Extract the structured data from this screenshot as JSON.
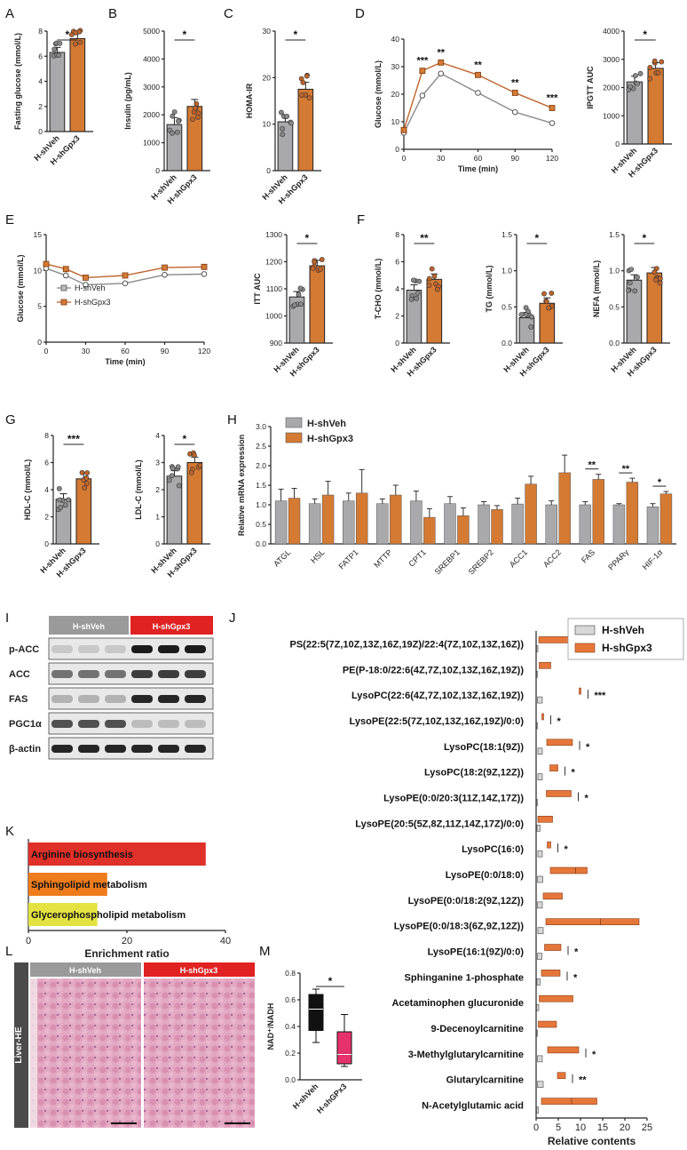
{
  "colors": {
    "veh": "#a9a9ab",
    "gpx": "#c0642a",
    "gpx_fill": "#d47a33",
    "kegg_red": "#e0302a",
    "kegg_orange": "#ef7c1c",
    "kegg_yellow": "#e3e242",
    "pink": "#e6326c",
    "blot_red": "#e02222",
    "blot_gray": "#9a9a9a"
  },
  "groups": {
    "veh": "H-shVeh",
    "gpx": "H-shGpx3",
    "gpx_lower": "H-shGPx3"
  },
  "panel_labels": [
    "A",
    "B",
    "C",
    "D",
    "E",
    "F",
    "G",
    "H",
    "I",
    "J",
    "K",
    "L",
    "M"
  ],
  "panelA": {
    "ylabel": "Fasting glucose (mmol/L)",
    "ylim": [
      0,
      8
    ],
    "ticks": [
      "0",
      "2",
      "4",
      "6",
      "8"
    ],
    "values": [
      6.3,
      7.4
    ],
    "sig": "*"
  },
  "panelB": {
    "ylabel": "Insulin (pg/mL)",
    "ylim": [
      0,
      5000
    ],
    "ticks": [
      "0",
      "1000",
      "2000",
      "3000",
      "4000",
      "5000"
    ],
    "values": [
      1650,
      2300
    ],
    "sig": "*"
  },
  "panelC": {
    "ylabel": "HOMA-IR",
    "ylim": [
      0,
      30
    ],
    "ticks": [
      "0",
      "10",
      "20",
      "30"
    ],
    "values": [
      10.5,
      17.5
    ],
    "sig": "*"
  },
  "panelD": {
    "ylabel": "Glucose (mmol/L)",
    "xlabel": "Time (min)",
    "ylim": [
      0,
      40
    ],
    "yticks": [
      "0",
      "10",
      "20",
      "30",
      "40"
    ],
    "xticks": [
      "0",
      "30",
      "60",
      "90",
      "120"
    ],
    "x": [
      0,
      15,
      30,
      60,
      90,
      120
    ],
    "veh": [
      6.0,
      19.5,
      27.5,
      20.5,
      13.5,
      9.5
    ],
    "gpx": [
      7.0,
      28.5,
      31.5,
      27.0,
      20.5,
      15.0
    ],
    "sig": [
      "***",
      "**",
      "**",
      "**",
      "***"
    ],
    "auc_ylabel": "IPGTT AUC",
    "auc_ylim": [
      0,
      4000
    ],
    "auc_ticks": [
      "0",
      "1000",
      "2000",
      "3000",
      "4000"
    ],
    "auc_values": [
      2200,
      2680
    ],
    "auc_sig": "*"
  },
  "panelE": {
    "ylabel": "Glucose (mmol/L)",
    "xlabel": "Time (min)",
    "ylim": [
      0,
      15
    ],
    "yticks": [
      "0",
      "5",
      "10",
      "15"
    ],
    "xticks": [
      "0",
      "30",
      "60",
      "90",
      "120"
    ],
    "x": [
      0,
      15,
      30,
      60,
      90,
      120
    ],
    "veh": [
      10.3,
      9.3,
      8.0,
      8.2,
      9.4,
      9.5
    ],
    "gpx": [
      10.9,
      10.2,
      9.0,
      9.3,
      10.4,
      10.5
    ],
    "auc_ylabel": "ITT AUC",
    "auc_ylim": [
      900,
      1300
    ],
    "auc_ticks": [
      "900",
      "1000",
      "1100",
      "1200",
      "1300"
    ],
    "auc_values": [
      1070,
      1185
    ],
    "auc_sig": "*"
  },
  "panelF": {
    "tcho": {
      "ylabel": "T-CHO (mmol/L)",
      "ylim": [
        0,
        8
      ],
      "ticks": [
        "0",
        "2",
        "4",
        "6",
        "8"
      ],
      "values": [
        3.9,
        4.7
      ],
      "sig": "**"
    },
    "tg": {
      "ylabel": "TG (mmol/L)",
      "ylim": [
        0,
        1.5
      ],
      "ticks": [
        "0.0",
        "0.5",
        "1.0",
        "1.5"
      ],
      "values": [
        0.35,
        0.55
      ],
      "sig": "*"
    },
    "nefa": {
      "ylabel": "NEFA (mmol/L)",
      "ylim": [
        0,
        1.5
      ],
      "ticks": [
        "0.0",
        "0.5",
        "1.0",
        "1.5"
      ],
      "values": [
        0.87,
        0.97
      ],
      "sig": "*"
    }
  },
  "panelG": {
    "hdl": {
      "ylabel": "HDL-C (mmol/L)",
      "ylim": [
        0,
        8
      ],
      "ticks": [
        "0",
        "2",
        "4",
        "6",
        "8"
      ],
      "values": [
        3.3,
        4.8
      ],
      "sig": "***"
    },
    "ldl": {
      "ylabel": "LDL-C (mmol/L)",
      "ylim": [
        0,
        4
      ],
      "ticks": [
        "0",
        "1",
        "2",
        "3",
        "4"
      ],
      "values": [
        2.5,
        3.0
      ],
      "sig": "*"
    }
  },
  "panelH": {
    "ylabel": "Relative mRNA expression",
    "ylim": [
      0,
      3
    ],
    "ticks": [
      "0.0",
      "0.5",
      "1.0",
      "1.5",
      "2.0",
      "2.5",
      "3.0"
    ],
    "categories": [
      "ATGL",
      "HSL",
      "FATP1",
      "MTTP",
      "CPT1",
      "SREBP1",
      "SREBP2",
      "ACC1",
      "ACC2",
      "FAS",
      "PPARγ",
      "HIF-1α"
    ],
    "veh": [
      1.1,
      1.03,
      1.1,
      1.03,
      1.1,
      1.03,
      1.0,
      1.02,
      1.0,
      1.0,
      1.0,
      0.95
    ],
    "gpx": [
      1.17,
      1.25,
      1.3,
      1.25,
      0.68,
      0.72,
      0.88,
      1.53,
      1.82,
      1.65,
      1.58,
      1.28
    ],
    "veh_err": [
      0.3,
      0.12,
      0.2,
      0.12,
      0.25,
      0.18,
      0.08,
      0.15,
      0.1,
      0.08,
      0.03,
      0.08
    ],
    "gpx_err": [
      0.25,
      0.35,
      0.6,
      0.25,
      0.22,
      0.2,
      0.1,
      0.2,
      0.45,
      0.13,
      0.1,
      0.06
    ],
    "sig": [
      "",
      "",
      "",
      "",
      "",
      "",
      "",
      "",
      "",
      "**",
      "**",
      "*"
    ]
  },
  "panelI": {
    "labels": [
      "p-ACC",
      "ACC",
      "FAS",
      "PGC1α",
      "β-actin"
    ]
  },
  "panelJ": {
    "xlabel": "Relative contents",
    "xlim": [
      0,
      25
    ],
    "ticks": [
      "0",
      "5",
      "10",
      "15",
      "20",
      "25"
    ],
    "metabolites": [
      "PS(22:5(7Z,10Z,13Z,16Z,19Z)/22:4(7Z,10Z,13Z,16Z))",
      "PE(P-18:0/22:6(4Z,7Z,10Z,13Z,16Z,19Z))",
      "LysoPC(22:6(4Z,7Z,10Z,13Z,16Z,19Z))",
      "LysoPE(22:5(7Z,10Z,13Z,16Z,19Z)/0:0)",
      "LysoPC(18:1(9Z))",
      "LysoPC(18:2(9Z,12Z))",
      "LysoPE(0:0/20:3(11Z,14Z,17Z))",
      "LysoPE(20:5(5Z,8Z,11Z,14Z,17Z)/0:0)",
      "LysoPC(16:0)",
      "LysoPE(0:0/18:0)",
      "LysoPE(0:0/18:2(9Z,12Z))",
      "LysoPE(0:0/18:3(6Z,9Z,12Z))",
      "LysoPE(16:1(9Z)/0:0)",
      "Sphinganine 1-phosphate",
      "Acetaminophen glucuronide",
      "9-Decenoylcarnitine",
      "3-Methylglutarylcarnitine",
      "Glutarylcarnitine",
      "N-Acetylglutamic acid"
    ],
    "veh_min": [
      0.1,
      0.1,
      0.3,
      0.1,
      0.4,
      0.4,
      0.1,
      0.2,
      0.4,
      0.3,
      0.3,
      0.4,
      0.3,
      0.2,
      0.1,
      0.1,
      0.3,
      0.3,
      0.1
    ],
    "veh_max": [
      0.4,
      0.3,
      1.4,
      0.3,
      1.4,
      1.4,
      0.3,
      0.9,
      1.4,
      1.5,
      1.4,
      1.6,
      1.3,
      0.9,
      0.6,
      0.3,
      1.4,
      1.6,
      0.5
    ],
    "gpx_min": [
      0.6,
      0.7,
      9.7,
      1.3,
      2.4,
      3.1,
      2.3,
      0.4,
      2.5,
      3.2,
      1.6,
      2.2,
      1.9,
      1.2,
      0.7,
      0.5,
      2.6,
      4.8,
      1.2
    ],
    "gpx_max": [
      7.7,
      3.3,
      10.1,
      1.7,
      8.2,
      4.9,
      7.9,
      3.7,
      3.3,
      11.5,
      5.9,
      23.2,
      5.6,
      5.4,
      8.3,
      4.6,
      9.6,
      6.6,
      13.7
    ],
    "gpx_med": [
      null,
      null,
      null,
      null,
      null,
      null,
      null,
      null,
      null,
      8.9,
      null,
      14.5,
      null,
      null,
      null,
      null,
      null,
      null,
      8.0
    ],
    "sig": [
      "",
      "",
      "***",
      "*",
      "*",
      "*",
      "*",
      "",
      "*",
      "",
      "",
      "",
      "*",
      "*",
      "",
      "",
      "*",
      "**",
      ""
    ]
  },
  "panelK": {
    "xlabel": "Enrichment ratio",
    "xlim": [
      0,
      40
    ],
    "ticks": [
      "0",
      "20",
      "40"
    ],
    "pathways": [
      "Arginine biosynthesis",
      "Sphingolipid metabolism",
      "Glycerophospholipid metabolism"
    ],
    "values": [
      36,
      16,
      14
    ]
  },
  "panelL": {
    "side_label": "Liver-HE"
  },
  "panelM": {
    "ylabel": "NAD⁺/NADH",
    "ylim": [
      0,
      0.8
    ],
    "ticks": [
      "0.0",
      "0.2",
      "0.4",
      "0.6",
      "0.8"
    ],
    "sig": "*",
    "veh_box": [
      0.28,
      0.37,
      0.53,
      0.64,
      0.68
    ],
    "gpx_box": [
      0.1,
      0.12,
      0.19,
      0.36,
      0.49
    ]
  }
}
